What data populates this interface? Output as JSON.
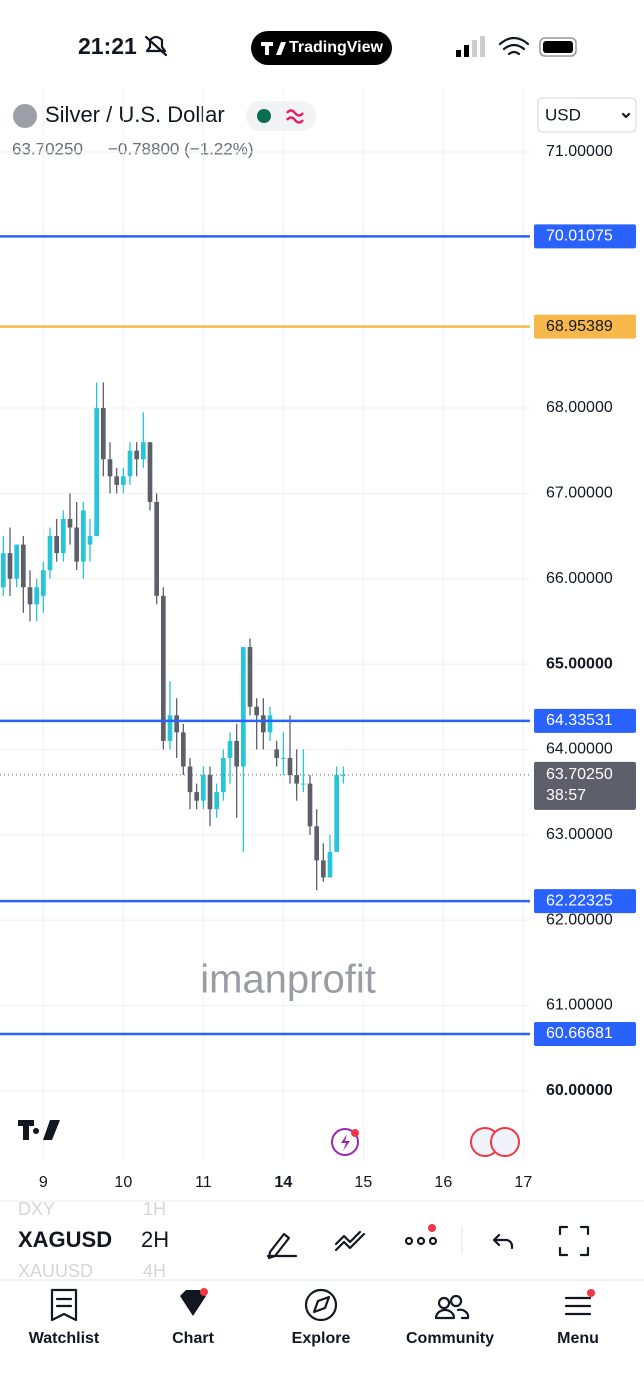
{
  "status_bar": {
    "time": "21:21",
    "app": "TradingView"
  },
  "header": {
    "symbol_name": "Silver / U.S. Dollar",
    "price": "63.70250",
    "change": "−0.78800 (−1.22%)",
    "currency": "USD"
  },
  "watermark": "imanprofit",
  "chart_data": {
    "type": "candlestick",
    "x": [
      0,
      1,
      2,
      3,
      4,
      5,
      6,
      7,
      8,
      9,
      10,
      11,
      12,
      13,
      14,
      15,
      16,
      17,
      18,
      19,
      20,
      21,
      22,
      23,
      24,
      25,
      26,
      27,
      28,
      29,
      30,
      31,
      32,
      33,
      34,
      35,
      36,
      37,
      38,
      39,
      40,
      41,
      42,
      43,
      44,
      45,
      46,
      47,
      48,
      49,
      50,
      51
    ],
    "open": [
      65.9,
      66.3,
      66.0,
      66.4,
      65.9,
      65.7,
      65.8,
      66.1,
      66.5,
      66.3,
      66.7,
      66.6,
      66.2,
      66.4,
      66.5,
      68.0,
      67.4,
      67.2,
      67.1,
      67.2,
      67.5,
      67.4,
      67.6,
      66.9,
      65.8,
      64.1,
      64.4,
      64.2,
      63.8,
      63.5,
      63.4,
      63.7,
      63.3,
      63.5,
      63.9,
      64.1,
      63.8,
      65.2,
      64.5,
      64.4,
      64.2,
      64.0,
      63.9,
      63.9,
      63.7,
      63.6,
      63.6,
      63.1,
      62.7,
      62.5,
      62.8,
      63.7
    ],
    "high": [
      66.5,
      66.6,
      66.4,
      66.5,
      66.1,
      66.0,
      66.2,
      66.6,
      66.7,
      66.8,
      67.0,
      66.9,
      66.9,
      66.7,
      68.3,
      68.3,
      67.6,
      67.3,
      67.3,
      67.6,
      67.6,
      67.95,
      67.6,
      67.0,
      65.9,
      64.8,
      64.6,
      64.3,
      63.9,
      63.6,
      63.8,
      63.8,
      63.6,
      64.0,
      64.2,
      64.3,
      65.2,
      65.3,
      64.6,
      64.6,
      64.5,
      64.1,
      64.2,
      64.4,
      64.0,
      64.0,
      63.7,
      63.3,
      62.9,
      63.0,
      63.8,
      63.8
    ],
    "low": [
      65.8,
      65.8,
      65.9,
      65.6,
      65.5,
      65.5,
      65.6,
      66.0,
      66.2,
      66.2,
      66.4,
      66.1,
      66.0,
      66.2,
      66.5,
      67.2,
      67.0,
      67.0,
      67.0,
      67.1,
      67.2,
      67.3,
      66.8,
      65.7,
      64.0,
      64.0,
      63.9,
      63.7,
      63.3,
      63.3,
      63.3,
      63.1,
      63.2,
      63.4,
      63.6,
      63.2,
      62.8,
      64.4,
      64.0,
      64.0,
      64.1,
      63.8,
      63.7,
      63.6,
      63.4,
      63.5,
      63.0,
      62.35,
      62.45,
      62.5,
      62.8,
      63.6
    ],
    "close": [
      66.3,
      66.0,
      66.4,
      65.9,
      65.7,
      65.9,
      66.1,
      66.5,
      66.3,
      66.7,
      66.6,
      66.2,
      66.8,
      66.5,
      68.0,
      67.4,
      67.2,
      67.1,
      67.2,
      67.5,
      67.4,
      67.6,
      66.9,
      65.8,
      64.1,
      64.4,
      64.2,
      63.8,
      63.5,
      63.4,
      63.7,
      63.3,
      63.5,
      63.9,
      64.1,
      63.8,
      65.2,
      64.5,
      64.4,
      64.2,
      64.4,
      63.9,
      63.9,
      63.7,
      63.6,
      63.6,
      63.1,
      62.7,
      62.5,
      62.8,
      63.7,
      63.7025
    ],
    "up_color": "#26c6da",
    "down_color": "#5d606b",
    "xlim": [
      -0.5,
      79
    ],
    "xticks": [
      {
        "value": 6,
        "label": "9"
      },
      {
        "value": 18,
        "label": "10"
      },
      {
        "value": 30,
        "label": "11"
      },
      {
        "value": 42,
        "label": "14",
        "bold": true
      },
      {
        "value": 54,
        "label": "15"
      },
      {
        "value": 66,
        "label": "16"
      },
      {
        "value": 78,
        "label": "17"
      }
    ],
    "ylim": [
      59.19,
      71.726
    ],
    "yticks": [
      {
        "value": 60,
        "label": "60.00000"
      },
      {
        "value": 61,
        "label": "61.00000"
      },
      {
        "value": 62,
        "label": "62.00000"
      },
      {
        "value": 63,
        "label": "63.00000"
      },
      {
        "value": 64,
        "label": "64.00000"
      },
      {
        "value": 65,
        "label": "65.00000"
      },
      {
        "value": 66,
        "label": "66.00000"
      },
      {
        "value": 67,
        "label": "67.00000"
      },
      {
        "value": 68,
        "label": "68.00000"
      },
      {
        "value": 71,
        "label": "71.00000"
      }
    ],
    "grid": true,
    "levels": [
      {
        "value": 70.01075,
        "color": "#2962ff"
      },
      {
        "value": 68.95389,
        "color": "#f7b84b"
      },
      {
        "value": 64.33531,
        "color": "#2962ff"
      },
      {
        "value": 62.22325,
        "color": "#2962ff"
      },
      {
        "value": 60.66681,
        "color": "#2962ff"
      }
    ],
    "last_price": {
      "value": 63.7025,
      "label": "63.70250",
      "countdown": "38:57"
    }
  },
  "toolbar": {
    "symbol": "XAGUSD",
    "interval": "2H",
    "prev_symbol": "DXY",
    "prev_interval": "1H",
    "next_symbol": "XAUUSD",
    "next_interval": "4H"
  },
  "nav": [
    "Watchlist",
    "Chart",
    "Explore",
    "Community",
    "Menu"
  ]
}
